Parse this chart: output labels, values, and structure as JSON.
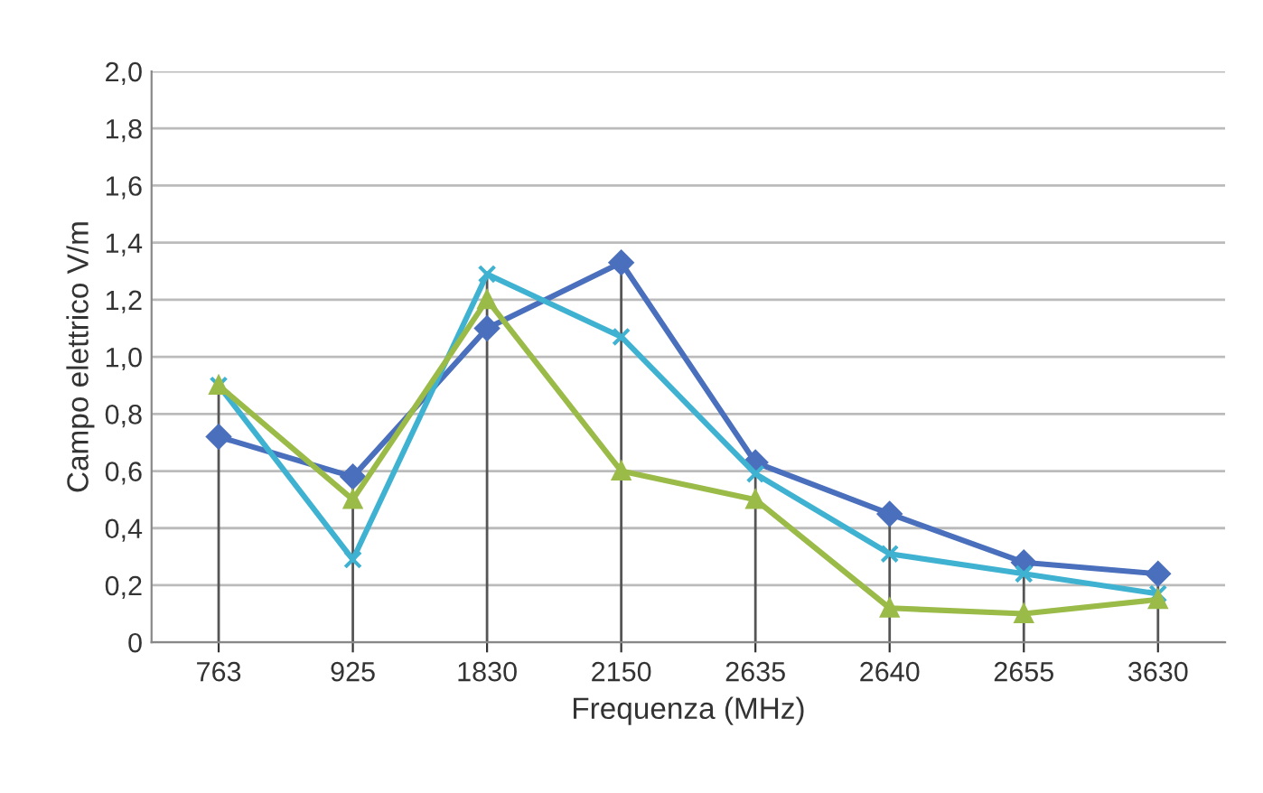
{
  "chart_data": {
    "type": "line",
    "xlabel": "Frequenza (MHz)",
    "ylabel": "Campo elettrico V/m",
    "categories": [
      "763",
      "925",
      "1830",
      "2150",
      "2635",
      "2640",
      "2655",
      "3630"
    ],
    "series": [
      {
        "color": "#4a6fbd",
        "marker": "diamond",
        "values": [
          0.72,
          0.58,
          1.1,
          1.33,
          0.63,
          0.45,
          0.28,
          0.24
        ],
        "errors": [
          null,
          [
            0.58,
            0
          ],
          null,
          [
            1.33,
            0
          ],
          [
            0.63,
            0
          ],
          [
            0.45,
            0
          ],
          [
            0.28,
            0
          ],
          [
            0.24,
            0
          ]
        ]
      },
      {
        "color": "#3fb2d2",
        "marker": "cross",
        "values": [
          0.9,
          0.29,
          1.29,
          1.07,
          0.59,
          0.31,
          0.24,
          0.17
        ],
        "errors": [
          [
            0.9,
            0
          ],
          null,
          [
            1.29,
            0
          ],
          null,
          null,
          null,
          null,
          null
        ]
      },
      {
        "color": "#9bbb48",
        "marker": "triangle",
        "values": [
          0.9,
          0.5,
          1.2,
          0.6,
          0.5,
          0.12,
          0.1,
          0.15
        ]
      }
    ],
    "ylim": [
      0,
      2.0
    ],
    "yticks": [
      {
        "value": 0,
        "label": "0"
      },
      {
        "value": 0.2,
        "label": "0,2"
      },
      {
        "value": 0.4,
        "label": "0,4"
      },
      {
        "value": 0.6,
        "label": "0,6"
      },
      {
        "value": 0.8,
        "label": "0,8"
      },
      {
        "value": 1.0,
        "label": "1,0"
      },
      {
        "value": 1.2,
        "label": "1,2"
      },
      {
        "value": 1.4,
        "label": "1,4"
      },
      {
        "value": 1.6,
        "label": "1,6"
      },
      {
        "value": 1.8,
        "label": "1,8"
      },
      {
        "value": 2.0,
        "label": "2,0"
      }
    ],
    "grid": "y",
    "legend": false,
    "line_style": "solid"
  }
}
